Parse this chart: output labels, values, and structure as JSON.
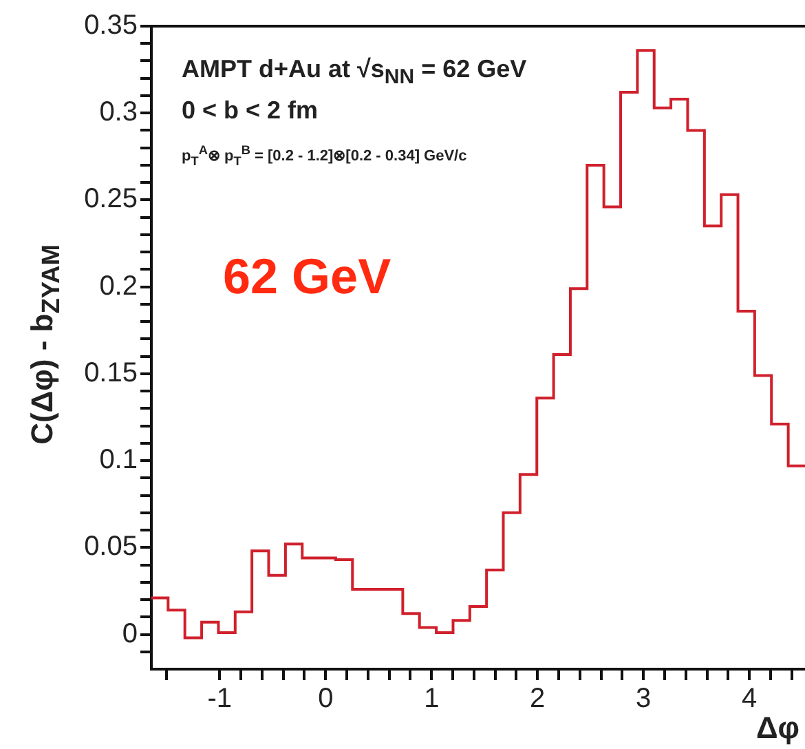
{
  "chart_data": {
    "type": "histogram",
    "xlabel": "Δφ",
    "ylabel": "C(Δφ) - b$_{ZYAM}$",
    "annotations": [
      "AMPT d+Au at √s$_{NN}$ = 62 GeV",
      "0 < b < 2 fm",
      "p$_{T}$$^{A}$⊗ p$_{T}$$^{B}$ = [0.2 - 1.2]⊗[0.2 - 0.34] GeV/c",
      "62 GeV"
    ],
    "bins": [
      -1.645,
      -1.487,
      -1.329,
      -1.17,
      -1.012,
      -0.854,
      -0.696,
      -0.538,
      -0.379,
      -0.221,
      -0.063,
      0.095,
      0.253,
      0.412,
      0.57,
      0.728,
      0.886,
      1.044,
      1.203,
      1.361,
      1.519,
      1.677,
      1.835,
      1.994,
      2.152,
      2.31,
      2.468,
      2.626,
      2.785,
      2.943,
      3.101,
      3.259,
      3.417,
      3.576,
      3.734,
      3.892,
      4.05,
      4.208,
      4.367,
      4.525
    ],
    "values": [
      0.021,
      0.014,
      -0.002,
      0.007,
      0.001,
      0.013,
      0.048,
      0.034,
      0.052,
      0.044,
      0.044,
      0.043,
      0.026,
      0.026,
      0.026,
      0.012,
      0.004,
      0.001,
      0.008,
      0.016,
      0.037,
      0.07,
      0.092,
      0.136,
      0.161,
      0.199,
      0.27,
      0.246,
      0.312,
      0.336,
      0.303,
      0.308,
      0.29,
      0.235,
      0.253,
      0.186,
      0.149,
      0.121,
      0.097
    ],
    "color": "#d0202c",
    "xlim": [
      -1.645,
      4.525
    ],
    "xticks": [
      {
        "value": -1.5,
        "label": null
      },
      -1,
      {
        "value": -0.8,
        "label": null
      },
      {
        "value": -0.6,
        "label": null
      },
      {
        "value": -0.4,
        "label": null
      },
      {
        "value": -0.2,
        "label": null
      },
      0,
      {
        "value": 0.2,
        "label": null
      },
      {
        "value": 0.4,
        "label": null
      },
      {
        "value": 0.6,
        "label": null
      },
      {
        "value": 0.8,
        "label": null
      },
      1,
      {
        "value": 1.2,
        "label": null
      },
      {
        "value": 1.4,
        "label": null
      },
      {
        "value": 1.6,
        "label": null
      },
      {
        "value": 1.8,
        "label": null
      },
      2,
      {
        "value": 2.2,
        "label": null
      },
      {
        "value": 2.4,
        "label": null
      },
      {
        "value": 2.6,
        "label": null
      },
      {
        "value": 2.8,
        "label": null
      },
      3,
      {
        "value": 3.2,
        "label": null
      },
      {
        "value": 3.4,
        "label": null
      },
      {
        "value": 3.6,
        "label": null
      },
      {
        "value": 3.8,
        "label": null
      },
      4,
      {
        "value": 4.2,
        "label": null
      },
      {
        "value": 4.4,
        "label": null
      }
    ],
    "ylim": [
      -0.02,
      0.35
    ],
    "yticks": [
      {
        "value": -0.01,
        "label": null
      },
      0,
      {
        "value": 0.01,
        "label": null
      },
      {
        "value": 0.02,
        "label": null
      },
      {
        "value": 0.03,
        "label": null
      },
      {
        "value": 0.04,
        "label": null
      },
      0.05,
      {
        "value": 0.06,
        "label": null
      },
      {
        "value": 0.07,
        "label": null
      },
      {
        "value": 0.08,
        "label": null
      },
      {
        "value": 0.09,
        "label": null
      },
      0.1,
      {
        "value": 0.11,
        "label": null
      },
      {
        "value": 0.12,
        "label": null
      },
      {
        "value": 0.13,
        "label": null
      },
      {
        "value": 0.14,
        "label": null
      },
      0.15,
      {
        "value": 0.16,
        "label": null
      },
      {
        "value": 0.17,
        "label": null
      },
      {
        "value": 0.18,
        "label": null
      },
      {
        "value": 0.19,
        "label": null
      },
      0.2,
      {
        "value": 0.21,
        "label": null
      },
      {
        "value": 0.22,
        "label": null
      },
      {
        "value": 0.23,
        "label": null
      },
      {
        "value": 0.24,
        "label": null
      },
      0.25,
      {
        "value": 0.26,
        "label": null
      },
      {
        "value": 0.27,
        "label": null
      },
      {
        "value": 0.28,
        "label": null
      },
      {
        "value": 0.29,
        "label": null
      },
      0.3,
      {
        "value": 0.31,
        "label": null
      },
      {
        "value": 0.32,
        "label": null
      },
      {
        "value": 0.33,
        "label": null
      },
      {
        "value": 0.34,
        "label": null
      },
      0.35
    ]
  }
}
